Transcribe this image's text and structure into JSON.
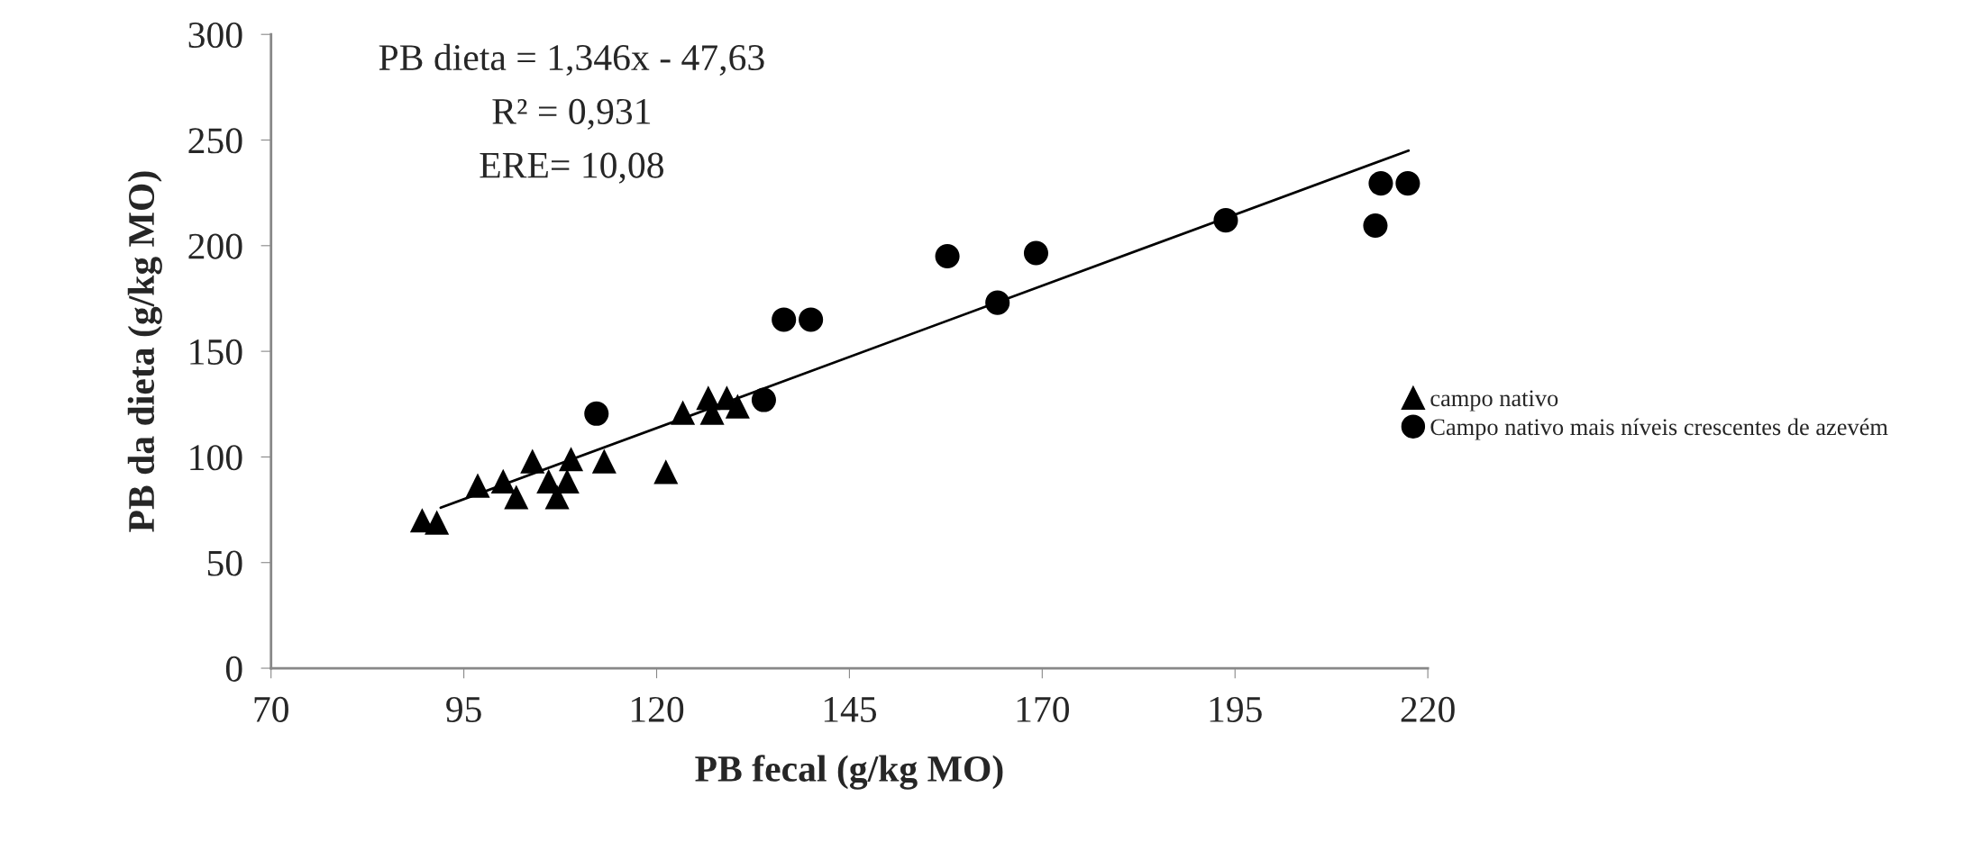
{
  "chart_data": {
    "type": "scatter",
    "xlabel": "PB fecal (g/kg MO)",
    "ylabel": "PB da dieta (g/kg MO)",
    "xlim": [
      70,
      220
    ],
    "xticks": [
      70,
      95,
      120,
      145,
      170,
      195,
      220
    ],
    "ylim": [
      0,
      300
    ],
    "yticks": [
      0,
      50,
      100,
      150,
      200,
      250,
      300
    ],
    "grid": false,
    "legend": "right",
    "annotations": [
      "PB dieta = 1,346x - 47,63",
      "R² = 0,931",
      "ERE= 10,08"
    ],
    "series": [
      {
        "name": "campo nativo",
        "color": "#000000",
        "marker": "triangle",
        "x": [
          89.6,
          91.5,
          96.8,
          100.1,
          101.8,
          103.9,
          106,
          107.1,
          108.4,
          108.9,
          113.2,
          121.2,
          123.4,
          126.7,
          127.2,
          129.1,
          130.5
        ],
        "values": [
          70,
          69,
          86.5,
          88.5,
          81,
          98,
          88.5,
          81,
          88.5,
          99,
          98,
          93,
          121,
          128,
          121,
          128,
          124
        ]
      },
      {
        "name": "Campo nativo mais níveis crescentes de azevém",
        "color": "#000000",
        "marker": "circle",
        "x": [
          112.2,
          133.9,
          136.5,
          140,
          157.7,
          164.2,
          169.2,
          193.8,
          213.2,
          213.9,
          217.4
        ],
        "values": [
          120.5,
          127,
          165,
          165,
          195,
          173,
          196.5,
          212,
          209.5,
          229.5,
          229.5
        ]
      },
      {
        "type": "line",
        "color": "#000000",
        "line_style": "solid",
        "marker": "none",
        "x": [
          92,
          217.5
        ],
        "values": [
          76,
          245
        ]
      }
    ]
  }
}
